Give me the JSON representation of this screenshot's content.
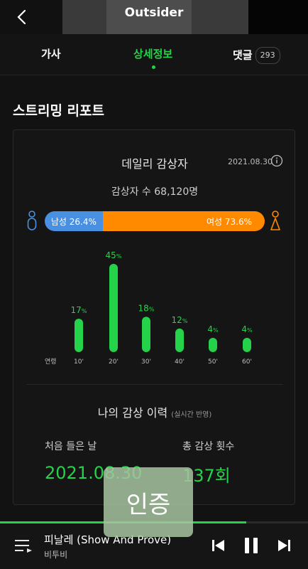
{
  "header": {
    "title": "Outsider"
  },
  "tabs": {
    "lyrics": "가사",
    "detail": "상세정보",
    "comments": "댓글",
    "comments_count": "293"
  },
  "report": {
    "section_title": "스트리밍 리포트",
    "daily_title": "데일리 감상자",
    "date": "2021.08.30",
    "listeners": "감상자 수 68,120명",
    "male_label": "남성 26.4%",
    "female_label": "여성 73.6%",
    "male_percent": 26.4,
    "age_heading": "연령"
  },
  "chart_data": {
    "type": "bar",
    "categories": [
      "10'",
      "20'",
      "30'",
      "40'",
      "50'",
      "60'"
    ],
    "values": [
      17,
      45,
      18,
      12,
      4,
      4
    ],
    "unit": "%",
    "xlabel": "연령"
  },
  "history": {
    "title": "나의 감상 이력",
    "subtitle": "(실시간 반영)",
    "first_label": "처음 들은 날",
    "first_value": "2021.08.30",
    "total_label": "총 감상 횟수",
    "total_value": "137회"
  },
  "stamp": "인증",
  "player": {
    "song": "피날레 (Show And Prove)",
    "artist": "비투비",
    "progress": 0.8
  },
  "colors": {
    "accent": "#25d34a",
    "male": "#4a90e2",
    "female": "#ff8a00"
  }
}
